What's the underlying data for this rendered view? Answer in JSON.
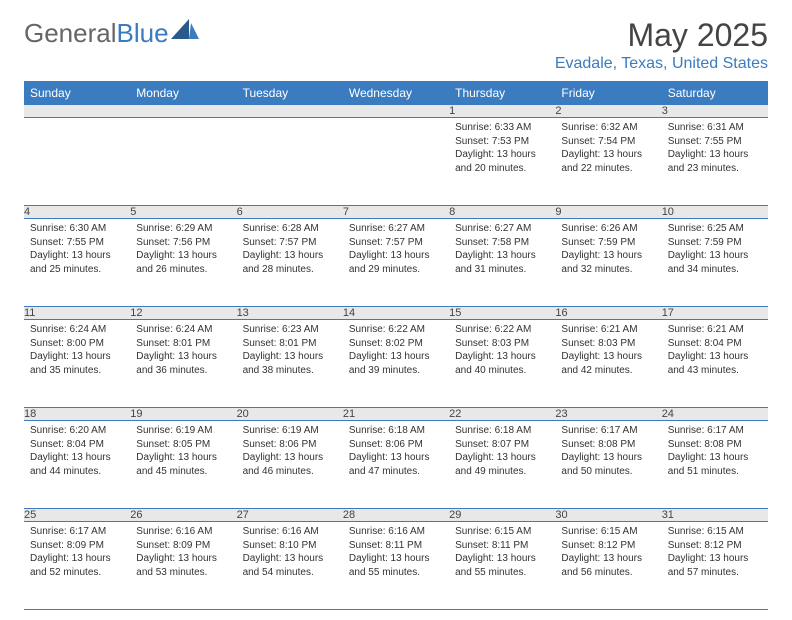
{
  "brand": {
    "part1": "General",
    "part2": "Blue"
  },
  "title": "May 2025",
  "location": "Evadale, Texas, United States",
  "colors": {
    "header_blue": "#3b7bbf",
    "light_gray": "#e8e8e8",
    "text": "#333333",
    "location": "#3b7bbf"
  },
  "weekdays": [
    "Sunday",
    "Monday",
    "Tuesday",
    "Wednesday",
    "Thursday",
    "Friday",
    "Saturday"
  ],
  "weeks": [
    {
      "nums": [
        "",
        "",
        "",
        "",
        "1",
        "2",
        "3"
      ],
      "cells": [
        null,
        null,
        null,
        null,
        {
          "sunrise": "Sunrise: 6:33 AM",
          "sunset": "Sunset: 7:53 PM",
          "daylight": "Daylight: 13 hours and 20 minutes."
        },
        {
          "sunrise": "Sunrise: 6:32 AM",
          "sunset": "Sunset: 7:54 PM",
          "daylight": "Daylight: 13 hours and 22 minutes."
        },
        {
          "sunrise": "Sunrise: 6:31 AM",
          "sunset": "Sunset: 7:55 PM",
          "daylight": "Daylight: 13 hours and 23 minutes."
        }
      ]
    },
    {
      "nums": [
        "4",
        "5",
        "6",
        "7",
        "8",
        "9",
        "10"
      ],
      "cells": [
        {
          "sunrise": "Sunrise: 6:30 AM",
          "sunset": "Sunset: 7:55 PM",
          "daylight": "Daylight: 13 hours and 25 minutes."
        },
        {
          "sunrise": "Sunrise: 6:29 AM",
          "sunset": "Sunset: 7:56 PM",
          "daylight": "Daylight: 13 hours and 26 minutes."
        },
        {
          "sunrise": "Sunrise: 6:28 AM",
          "sunset": "Sunset: 7:57 PM",
          "daylight": "Daylight: 13 hours and 28 minutes."
        },
        {
          "sunrise": "Sunrise: 6:27 AM",
          "sunset": "Sunset: 7:57 PM",
          "daylight": "Daylight: 13 hours and 29 minutes."
        },
        {
          "sunrise": "Sunrise: 6:27 AM",
          "sunset": "Sunset: 7:58 PM",
          "daylight": "Daylight: 13 hours and 31 minutes."
        },
        {
          "sunrise": "Sunrise: 6:26 AM",
          "sunset": "Sunset: 7:59 PM",
          "daylight": "Daylight: 13 hours and 32 minutes."
        },
        {
          "sunrise": "Sunrise: 6:25 AM",
          "sunset": "Sunset: 7:59 PM",
          "daylight": "Daylight: 13 hours and 34 minutes."
        }
      ]
    },
    {
      "nums": [
        "11",
        "12",
        "13",
        "14",
        "15",
        "16",
        "17"
      ],
      "cells": [
        {
          "sunrise": "Sunrise: 6:24 AM",
          "sunset": "Sunset: 8:00 PM",
          "daylight": "Daylight: 13 hours and 35 minutes."
        },
        {
          "sunrise": "Sunrise: 6:24 AM",
          "sunset": "Sunset: 8:01 PM",
          "daylight": "Daylight: 13 hours and 36 minutes."
        },
        {
          "sunrise": "Sunrise: 6:23 AM",
          "sunset": "Sunset: 8:01 PM",
          "daylight": "Daylight: 13 hours and 38 minutes."
        },
        {
          "sunrise": "Sunrise: 6:22 AM",
          "sunset": "Sunset: 8:02 PM",
          "daylight": "Daylight: 13 hours and 39 minutes."
        },
        {
          "sunrise": "Sunrise: 6:22 AM",
          "sunset": "Sunset: 8:03 PM",
          "daylight": "Daylight: 13 hours and 40 minutes."
        },
        {
          "sunrise": "Sunrise: 6:21 AM",
          "sunset": "Sunset: 8:03 PM",
          "daylight": "Daylight: 13 hours and 42 minutes."
        },
        {
          "sunrise": "Sunrise: 6:21 AM",
          "sunset": "Sunset: 8:04 PM",
          "daylight": "Daylight: 13 hours and 43 minutes."
        }
      ]
    },
    {
      "nums": [
        "18",
        "19",
        "20",
        "21",
        "22",
        "23",
        "24"
      ],
      "cells": [
        {
          "sunrise": "Sunrise: 6:20 AM",
          "sunset": "Sunset: 8:04 PM",
          "daylight": "Daylight: 13 hours and 44 minutes."
        },
        {
          "sunrise": "Sunrise: 6:19 AM",
          "sunset": "Sunset: 8:05 PM",
          "daylight": "Daylight: 13 hours and 45 minutes."
        },
        {
          "sunrise": "Sunrise: 6:19 AM",
          "sunset": "Sunset: 8:06 PM",
          "daylight": "Daylight: 13 hours and 46 minutes."
        },
        {
          "sunrise": "Sunrise: 6:18 AM",
          "sunset": "Sunset: 8:06 PM",
          "daylight": "Daylight: 13 hours and 47 minutes."
        },
        {
          "sunrise": "Sunrise: 6:18 AM",
          "sunset": "Sunset: 8:07 PM",
          "daylight": "Daylight: 13 hours and 49 minutes."
        },
        {
          "sunrise": "Sunrise: 6:17 AM",
          "sunset": "Sunset: 8:08 PM",
          "daylight": "Daylight: 13 hours and 50 minutes."
        },
        {
          "sunrise": "Sunrise: 6:17 AM",
          "sunset": "Sunset: 8:08 PM",
          "daylight": "Daylight: 13 hours and 51 minutes."
        }
      ]
    },
    {
      "nums": [
        "25",
        "26",
        "27",
        "28",
        "29",
        "30",
        "31"
      ],
      "cells": [
        {
          "sunrise": "Sunrise: 6:17 AM",
          "sunset": "Sunset: 8:09 PM",
          "daylight": "Daylight: 13 hours and 52 minutes."
        },
        {
          "sunrise": "Sunrise: 6:16 AM",
          "sunset": "Sunset: 8:09 PM",
          "daylight": "Daylight: 13 hours and 53 minutes."
        },
        {
          "sunrise": "Sunrise: 6:16 AM",
          "sunset": "Sunset: 8:10 PM",
          "daylight": "Daylight: 13 hours and 54 minutes."
        },
        {
          "sunrise": "Sunrise: 6:16 AM",
          "sunset": "Sunset: 8:11 PM",
          "daylight": "Daylight: 13 hours and 55 minutes."
        },
        {
          "sunrise": "Sunrise: 6:15 AM",
          "sunset": "Sunset: 8:11 PM",
          "daylight": "Daylight: 13 hours and 55 minutes."
        },
        {
          "sunrise": "Sunrise: 6:15 AM",
          "sunset": "Sunset: 8:12 PM",
          "daylight": "Daylight: 13 hours and 56 minutes."
        },
        {
          "sunrise": "Sunrise: 6:15 AM",
          "sunset": "Sunset: 8:12 PM",
          "daylight": "Daylight: 13 hours and 57 minutes."
        }
      ]
    }
  ]
}
